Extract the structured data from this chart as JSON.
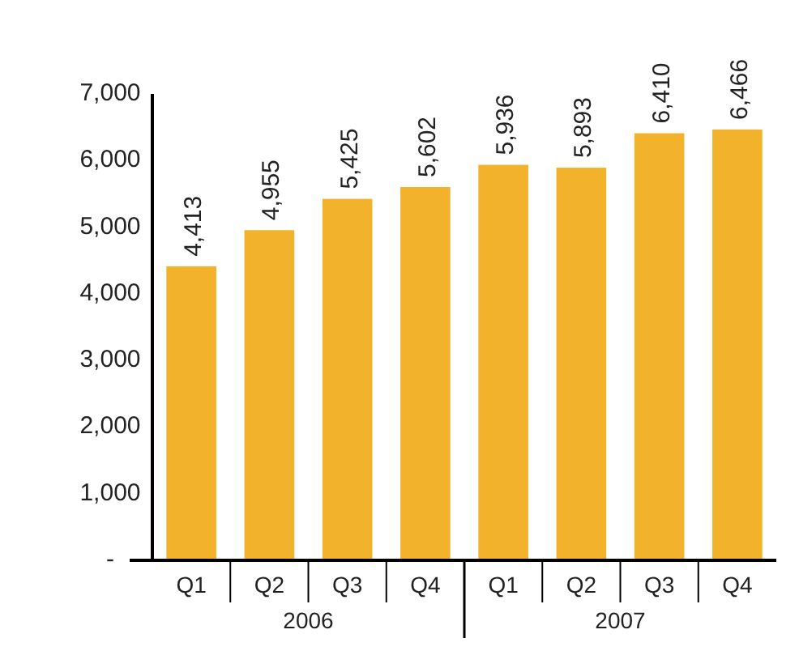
{
  "chart_data": {
    "type": "bar",
    "categories": [
      "Q1",
      "Q2",
      "Q3",
      "Q4",
      "Q1",
      "Q2",
      "Q3",
      "Q4"
    ],
    "values": [
      4413,
      4955,
      5425,
      5602,
      5936,
      5893,
      6410,
      6466
    ],
    "color": "#f3b22c",
    "value_labels": [
      "4,413",
      "4,955",
      "5,425",
      "5,602",
      "5,936",
      "5,893",
      "6,410",
      "6,466"
    ],
    "grid": false,
    "ylim": [
      0,
      7000
    ],
    "yticks": [
      {
        "value": 0,
        "label": "-"
      },
      {
        "value": 1000,
        "label": "1,000"
      },
      {
        "value": 2000,
        "label": "2,000"
      },
      {
        "value": 3000,
        "label": "3,000"
      },
      {
        "value": 4000,
        "label": "4,000"
      },
      {
        "value": 5000,
        "label": "5,000"
      },
      {
        "value": 6000,
        "label": "6,000"
      },
      {
        "value": 7000,
        "label": "7,000"
      }
    ],
    "annotations": [
      "2006",
      "2007"
    ]
  }
}
